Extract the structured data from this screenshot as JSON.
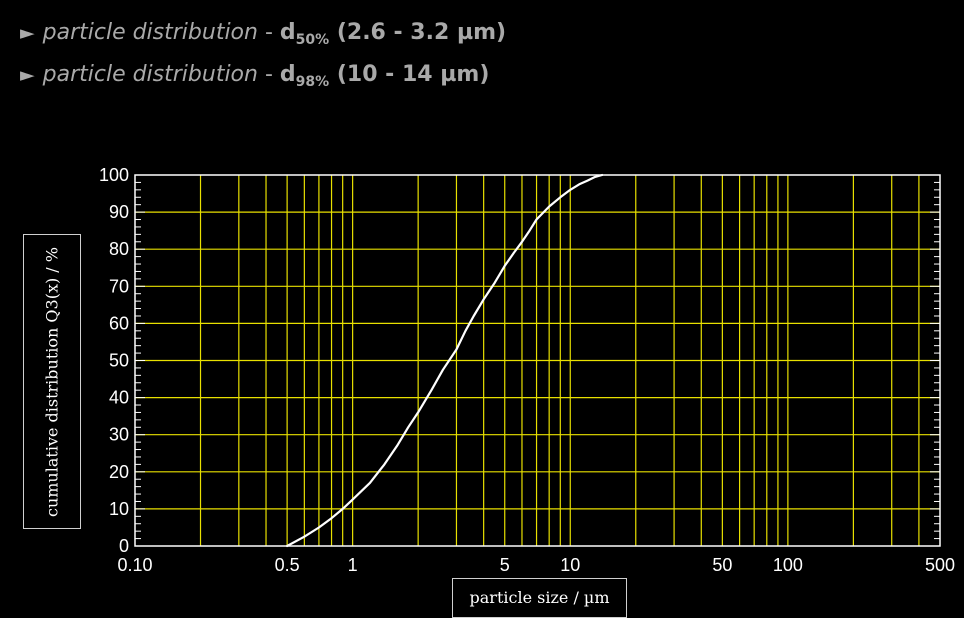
{
  "bullets": [
    {
      "desc": "particle distribution",
      "sep": " - ",
      "metric": "d",
      "sub": "50%",
      "range": " (2.6 - 3.2 µm)"
    },
    {
      "desc": "particle distribution",
      "sep": " - ",
      "metric": "d",
      "sub": "98%",
      "range": " (10 - 14 µm)"
    }
  ],
  "bullet_icon": "right-triangle-arrow",
  "colors": {
    "background": "#000000",
    "grid": "#e8e000",
    "curve": "#ffffff",
    "axis": "#ffffff",
    "bullet_text": "#a9a9a9"
  },
  "chart_data": {
    "type": "line",
    "xlabel": "particle size / µm",
    "ylabel": "cumulative distribution Q3(x) / %",
    "x_scale": "log",
    "xlim": [
      0.1,
      500
    ],
    "ylim": [
      0,
      100
    ],
    "x_ticks": [
      "0.10",
      "0.5",
      "1",
      "5",
      "10",
      "50",
      "100",
      "500"
    ],
    "y_ticks": [
      "0",
      "10",
      "20",
      "30",
      "40",
      "50",
      "60",
      "70",
      "80",
      "90",
      "100"
    ],
    "grid": true,
    "series": [
      {
        "x": [
          0.5,
          0.6,
          0.7,
          0.8,
          0.9,
          1.0,
          1.2,
          1.4,
          1.6,
          1.8,
          2.0,
          2.3,
          2.6,
          3.0,
          3.3,
          3.6,
          4.0,
          4.5,
          5.0,
          5.5,
          6.0,
          6.5,
          7.0,
          8.0,
          9.0,
          10.0,
          11.0,
          12.0,
          13.0,
          14.0
        ],
        "y": [
          0,
          2.5,
          5,
          7.5,
          10,
          12.5,
          17,
          22,
          27,
          32,
          36,
          42,
          47.5,
          53,
          58,
          62,
          66.5,
          71,
          75.5,
          79,
          82,
          85,
          88,
          91.5,
          94,
          96,
          97.5,
          98.5,
          99.5,
          100
        ]
      }
    ]
  }
}
